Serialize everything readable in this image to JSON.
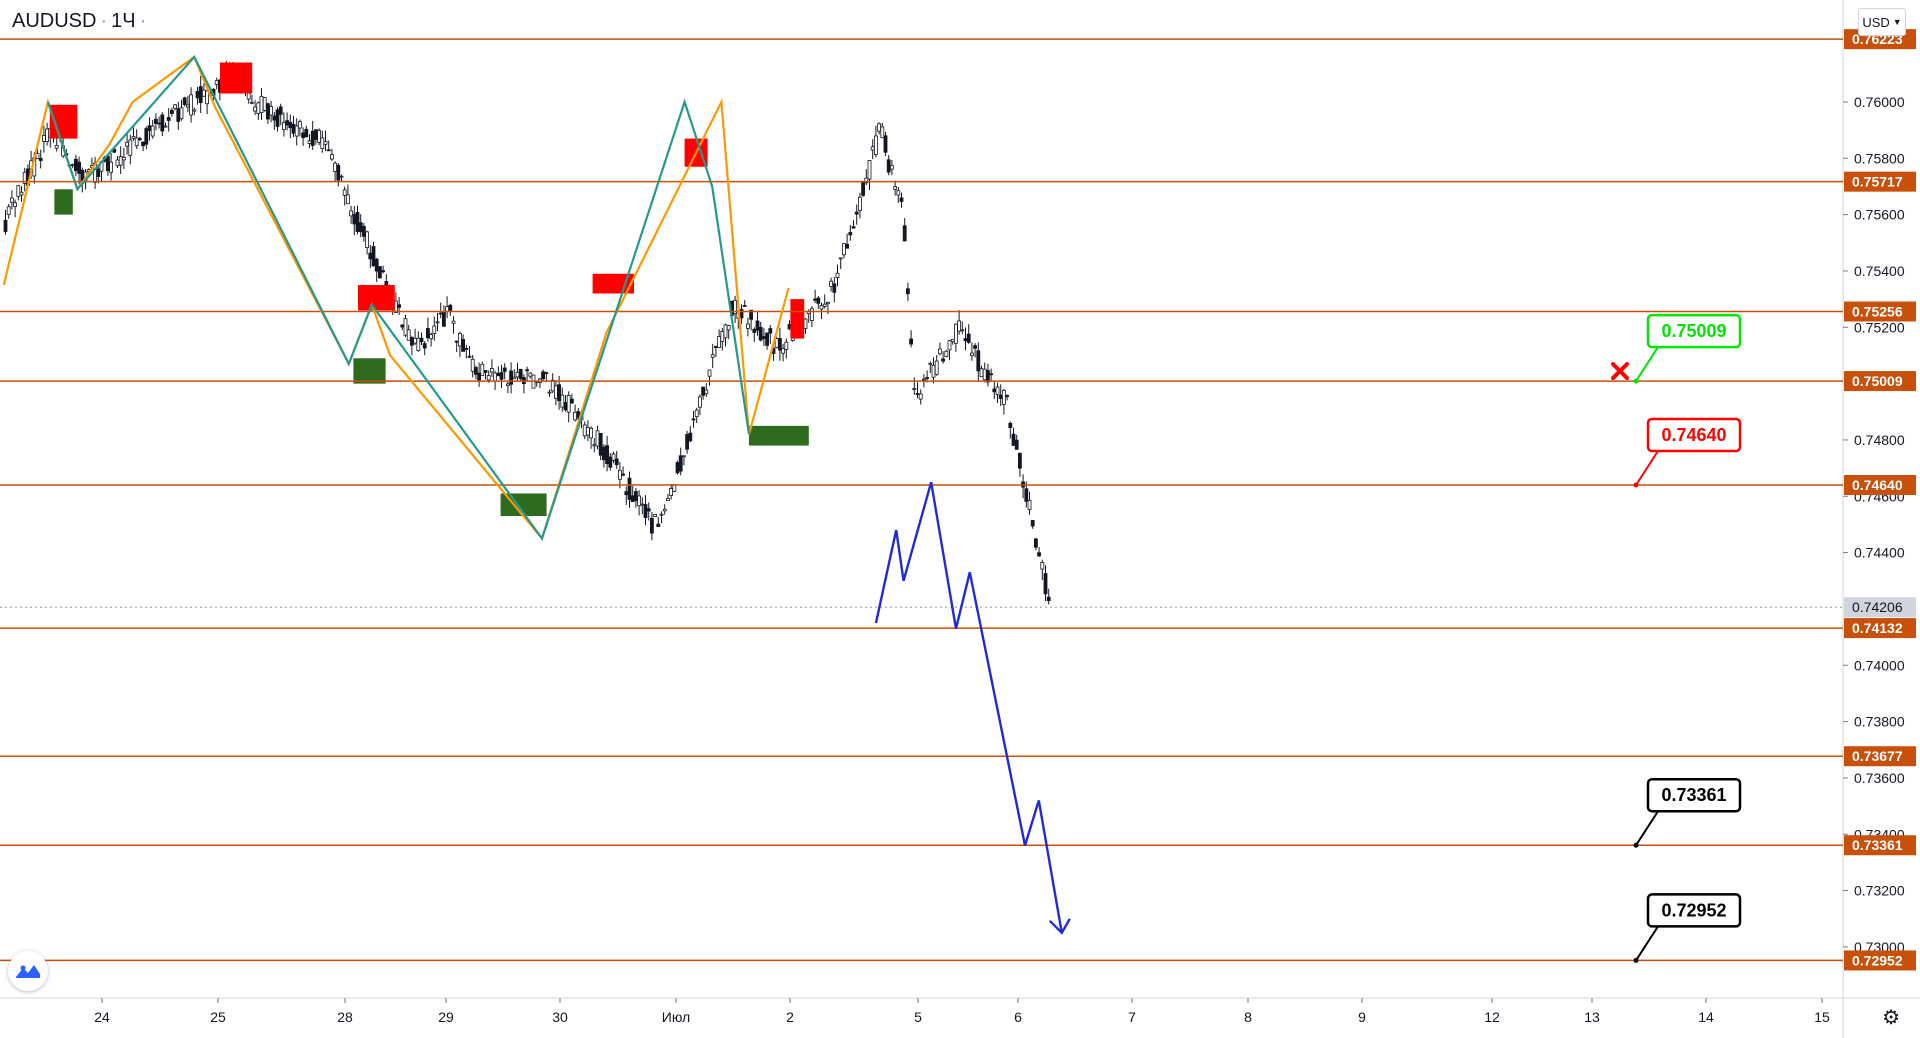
{
  "header": {
    "symbol": "AUDUSD",
    "interval": "1Ч",
    "currency": "USD"
  },
  "colors": {
    "level_line": "#c8500a",
    "level_tag_bg": "#c8500a",
    "up_zone": "#2e6b1e",
    "down_zone": "#ff0000",
    "zigzag_orange": "#ff9800",
    "zigzag_teal": "#26998d",
    "forecast": "#1f2bd6",
    "candle": "#131722",
    "current_price_tag": "#9598a1"
  },
  "chart_data": {
    "type": "candlestick",
    "x_ticks": [
      "24",
      "25",
      "28",
      "29",
      "30",
      "Июл",
      "2",
      "5",
      "6",
      "7",
      "8",
      "9",
      "12",
      "13",
      "14",
      "15"
    ],
    "y_ticks": [
      "0.76000",
      "0.75800",
      "0.75600",
      "0.75400",
      "0.75200",
      "0.74800",
      "0.74600",
      "0.74400",
      "0.74000",
      "0.73800",
      "0.73600",
      "0.73400",
      "0.73200",
      "0.73000"
    ],
    "ylim": [
      0.7287,
      0.7635
    ],
    "levels": [
      "0.76223",
      "0.75717",
      "0.75256",
      "0.75009",
      "0.74640",
      "0.74132",
      "0.73677",
      "0.73361",
      "0.72952"
    ],
    "current_price": "0.74206",
    "callouts": [
      {
        "label": "0.75009",
        "price": 0.75009,
        "color": "#00e600",
        "crossed": true
      },
      {
        "label": "0.74640",
        "price": 0.7464,
        "color": "#ff0000",
        "crossed": false
      },
      {
        "label": "0.73361",
        "price": 0.73361,
        "color": "#000000",
        "crossed": false
      },
      {
        "label": "0.72952",
        "price": 0.72952,
        "color": "#000000",
        "crossed": false
      }
    ],
    "zones_supply": [
      {
        "t0": 4.0,
        "t1": 7.0,
        "p0": 0.7587,
        "p1": 0.7599
      },
      {
        "t0": 22.5,
        "t1": 26.0,
        "p0": 0.7603,
        "p1": 0.7614
      },
      {
        "t0": 37.5,
        "t1": 41.5,
        "p0": 0.7526,
        "p1": 0.7535
      },
      {
        "t0": 63.0,
        "t1": 67.5,
        "p0": 0.7532,
        "p1": 0.7539
      },
      {
        "t0": 73.0,
        "t1": 75.5,
        "p0": 0.7577,
        "p1": 0.7587
      },
      {
        "t0": 84.5,
        "t1": 86.0,
        "p0": 0.7516,
        "p1": 0.753
      }
    ],
    "zones_demand": [
      {
        "t0": 4.5,
        "t1": 6.5,
        "p0": 0.756,
        "p1": 0.7569
      },
      {
        "t0": 37.0,
        "t1": 40.5,
        "p0": 0.75,
        "p1": 0.7509
      },
      {
        "t0": 53.0,
        "t1": 58.0,
        "p0": 0.7453,
        "p1": 0.7461
      },
      {
        "t0": 80.0,
        "t1": 86.5,
        "p0": 0.7478,
        "p1": 0.7485
      }
    ],
    "zigzag_orange": [
      [
        -1.0,
        0.7535
      ],
      [
        3.8,
        0.76
      ],
      [
        7.0,
        0.7569
      ],
      [
        10.5,
        0.7585
      ],
      [
        13.0,
        0.76
      ],
      [
        19.7,
        0.7616
      ],
      [
        22.0,
        0.7598
      ],
      [
        36.5,
        0.7507
      ],
      [
        39.0,
        0.7528
      ],
      [
        41.0,
        0.751
      ],
      [
        57.5,
        0.7445
      ],
      [
        64.5,
        0.7518
      ],
      [
        77.0,
        0.76
      ],
      [
        80.0,
        0.7482
      ],
      [
        84.3,
        0.7534
      ]
    ],
    "zigzag_teal": [
      [
        3.8,
        0.76
      ],
      [
        7.0,
        0.7569
      ],
      [
        19.7,
        0.7616
      ],
      [
        36.5,
        0.7507
      ],
      [
        39.0,
        0.7528
      ],
      [
        57.5,
        0.7445
      ],
      [
        73.0,
        0.76
      ],
      [
        76.0,
        0.757
      ],
      [
        80.0,
        0.7482
      ]
    ],
    "forecast_path": [
      [
        93.8,
        0.7415
      ],
      [
        96.0,
        0.7448
      ],
      [
        96.8,
        0.743
      ],
      [
        99.8,
        0.7465
      ],
      [
        102.5,
        0.7413
      ],
      [
        104.0,
        0.7433
      ],
      [
        110.0,
        0.7336
      ],
      [
        111.5,
        0.7352
      ],
      [
        114.0,
        0.7305
      ]
    ]
  }
}
